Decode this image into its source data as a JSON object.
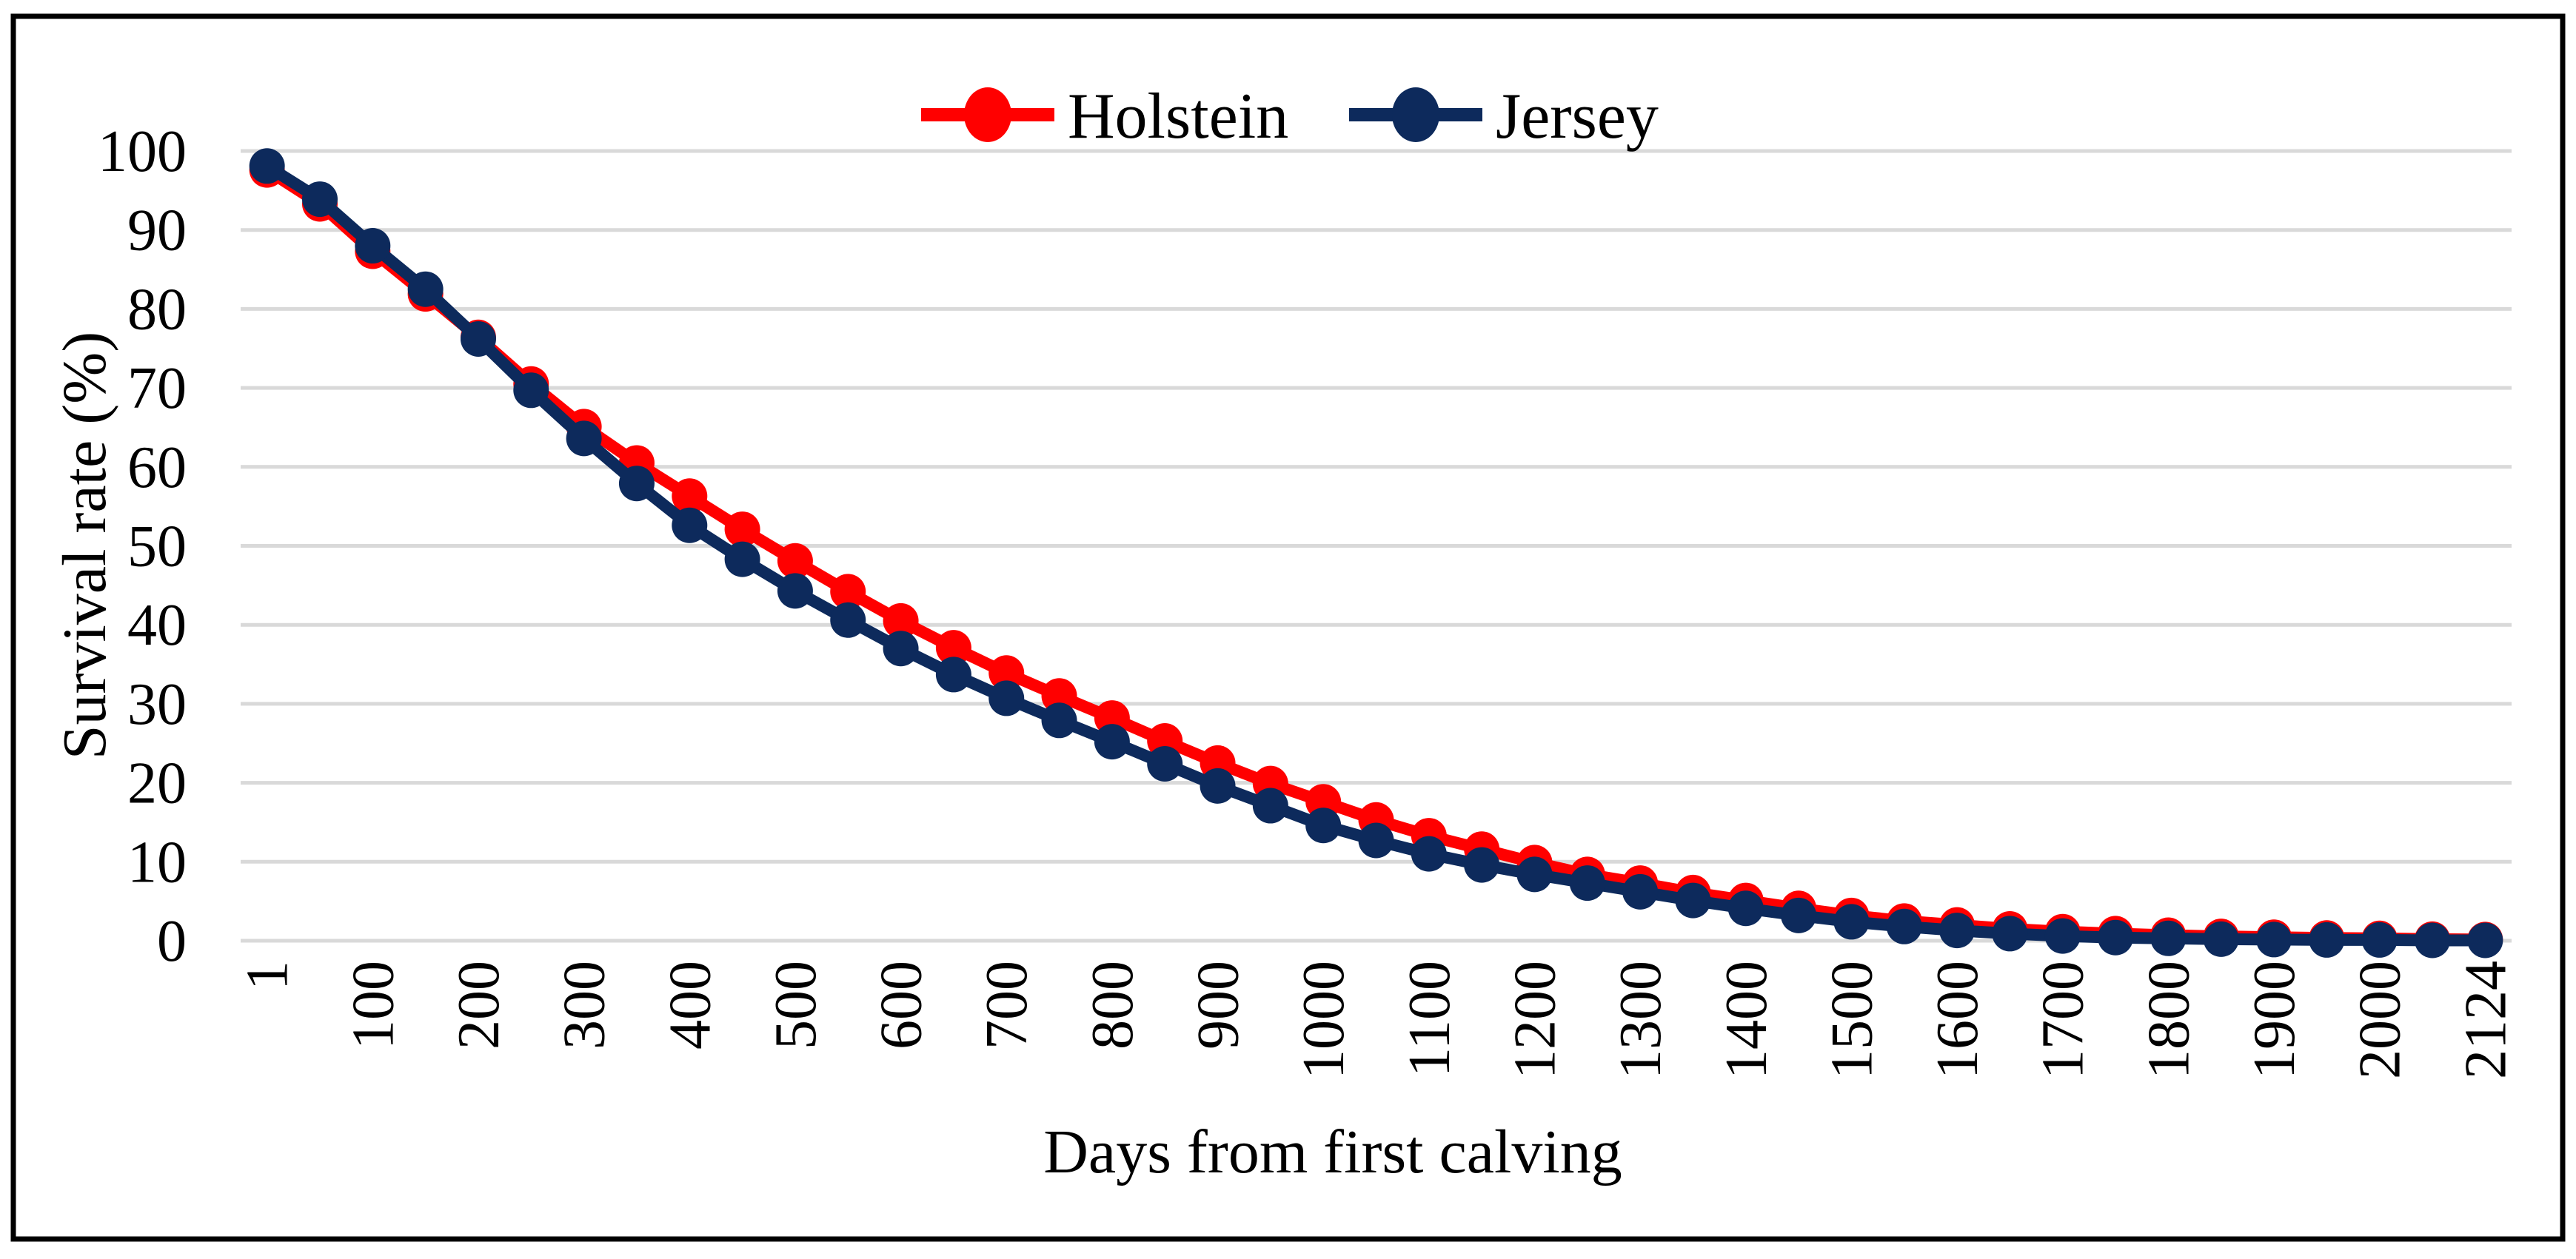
{
  "chart_data": {
    "type": "line",
    "title": "",
    "xlabel": "Days from first calving",
    "ylabel": "Survival rate (%)",
    "x": [
      1,
      50,
      100,
      150,
      200,
      250,
      300,
      350,
      400,
      450,
      500,
      550,
      600,
      650,
      700,
      750,
      800,
      850,
      900,
      950,
      1000,
      1050,
      1100,
      1150,
      1200,
      1250,
      1300,
      1350,
      1400,
      1450,
      1500,
      1550,
      1600,
      1650,
      1700,
      1750,
      1800,
      1850,
      1900,
      1950,
      2000,
      2050,
      2124
    ],
    "x_tick_labels": [
      "1",
      "100",
      "200",
      "300",
      "400",
      "500",
      "600",
      "700",
      "800",
      "900",
      "1000",
      "1100",
      "1200",
      "1300",
      "1400",
      "1500",
      "1600",
      "1700",
      "1800",
      "1900",
      "2000",
      "2124"
    ],
    "x_tick_every": 2,
    "y_ticks": [
      0,
      10,
      20,
      30,
      40,
      50,
      60,
      70,
      80,
      90,
      100
    ],
    "ylim": [
      0,
      100
    ],
    "grid": "horizontal",
    "legend_position": "top-center",
    "series": [
      {
        "name": "Holstein",
        "color": "#ff0000",
        "values": [
          97.6,
          93.3,
          87.3,
          81.9,
          76.4,
          70.5,
          65.1,
          60.5,
          56.3,
          52.1,
          48.1,
          44.2,
          40.5,
          37.1,
          33.9,
          31.0,
          28.2,
          25.3,
          22.5,
          19.9,
          17.6,
          15.3,
          13.3,
          11.6,
          9.9,
          8.4,
          7.3,
          6.1,
          5.1,
          4.1,
          3.2,
          2.5,
          2.0,
          1.5,
          1.15,
          0.9,
          0.7,
          0.55,
          0.45,
          0.35,
          0.3,
          0.2,
          0.15
        ]
      },
      {
        "name": "Jersey",
        "color": "#0d2a5c",
        "values": [
          98.1,
          93.9,
          88.0,
          82.5,
          76.2,
          69.7,
          63.6,
          57.9,
          52.6,
          48.3,
          44.3,
          40.6,
          37.0,
          33.7,
          30.7,
          27.9,
          25.2,
          22.4,
          19.6,
          17.1,
          14.6,
          12.7,
          11.0,
          9.6,
          8.4,
          7.3,
          6.2,
          5.1,
          4.1,
          3.2,
          2.4,
          1.8,
          1.3,
          0.9,
          0.6,
          0.4,
          0.3,
          0.2,
          0.15,
          0.1,
          0.1,
          0.05,
          0.05
        ]
      }
    ]
  },
  "colors": {
    "gridline": "#d9d9d9",
    "border": "#000000",
    "background": "#ffffff",
    "text": "#000000"
  }
}
